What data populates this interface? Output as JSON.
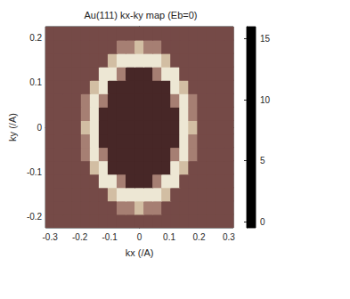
{
  "chart_data": {
    "type": "heatmap",
    "title": "Au(111) kx-ky map (Eb=0)",
    "xlabel": "kx (/A)",
    "ylabel": "ky (/A)",
    "xlim": [
      -0.315,
      0.315
    ],
    "ylim": [
      -0.225,
      0.225
    ],
    "xticks": [
      -0.3,
      -0.2,
      -0.1,
      0,
      0.1,
      0.2,
      0.3
    ],
    "yticks": [
      -0.2,
      -0.1,
      0,
      0.1,
      0.2
    ],
    "x": [
      -0.3,
      -0.27,
      -0.24,
      -0.21,
      -0.18,
      -0.15,
      -0.12,
      -0.09,
      -0.06,
      -0.03,
      0,
      0.03,
      0.06,
      0.09,
      0.12,
      0.15,
      0.18,
      0.21,
      0.24,
      0.27,
      0.3
    ],
    "y": [
      -0.21,
      -0.18,
      -0.15,
      -0.12,
      -0.09,
      -0.06,
      -0.03,
      0,
      0.03,
      0.06,
      0.09,
      0.12,
      0.15,
      0.18,
      0.21
    ],
    "cells": [
      [
        4,
        4,
        4,
        4,
        4,
        4,
        4,
        4,
        4,
        4,
        4,
        4,
        4,
        4,
        4,
        4,
        4,
        4,
        4,
        4,
        4
      ],
      [
        4,
        4,
        4,
        4,
        4,
        4,
        4,
        4,
        7,
        7,
        11,
        7,
        7,
        4,
        4,
        4,
        4,
        4,
        4,
        4,
        4
      ],
      [
        4,
        4,
        4,
        4,
        4,
        4,
        4,
        11,
        14,
        14,
        14,
        14,
        14,
        11,
        4,
        4,
        4,
        4,
        4,
        4,
        4
      ],
      [
        4,
        4,
        4,
        4,
        4,
        4,
        14,
        14,
        7,
        2,
        2,
        2,
        7,
        14,
        14,
        4,
        4,
        4,
        4,
        4,
        4
      ],
      [
        4,
        4,
        4,
        4,
        4,
        11,
        14,
        2,
        2,
        2,
        2,
        2,
        2,
        2,
        14,
        11,
        4,
        4,
        4,
        4,
        4
      ],
      [
        4,
        4,
        4,
        4,
        7,
        14,
        7,
        2,
        2,
        2,
        2,
        2,
        2,
        2,
        7,
        14,
        7,
        4,
        4,
        4,
        4
      ],
      [
        4,
        4,
        4,
        4,
        7,
        14,
        2,
        2,
        2,
        2,
        2,
        2,
        2,
        2,
        2,
        14,
        7,
        4,
        4,
        4,
        4
      ],
      [
        4,
        4,
        4,
        4,
        11,
        14,
        2,
        2,
        2,
        2,
        2,
        2,
        2,
        2,
        2,
        14,
        11,
        4,
        4,
        4,
        4
      ],
      [
        4,
        4,
        4,
        4,
        7,
        14,
        2,
        2,
        2,
        2,
        2,
        2,
        2,
        2,
        2,
        14,
        7,
        4,
        4,
        4,
        4
      ],
      [
        4,
        4,
        4,
        4,
        7,
        14,
        7,
        2,
        2,
        2,
        2,
        2,
        2,
        2,
        7,
        14,
        7,
        4,
        4,
        4,
        4
      ],
      [
        4,
        4,
        4,
        4,
        4,
        11,
        14,
        2,
        2,
        2,
        2,
        2,
        2,
        2,
        14,
        11,
        4,
        4,
        4,
        4,
        4
      ],
      [
        4,
        4,
        4,
        4,
        4,
        4,
        14,
        14,
        7,
        2,
        2,
        2,
        7,
        14,
        14,
        4,
        4,
        4,
        4,
        4,
        4
      ],
      [
        4,
        4,
        4,
        4,
        4,
        4,
        4,
        11,
        14,
        14,
        14,
        14,
        14,
        11,
        4,
        4,
        4,
        4,
        4,
        4,
        4
      ],
      [
        4,
        4,
        4,
        4,
        4,
        4,
        4,
        4,
        7,
        7,
        11,
        7,
        7,
        4,
        4,
        4,
        4,
        4,
        4,
        4,
        4
      ],
      [
        4,
        4,
        4,
        4,
        4,
        4,
        4,
        4,
        4,
        4,
        4,
        4,
        4,
        4,
        4,
        4,
        4,
        4,
        4,
        4,
        4
      ]
    ],
    "colorbar": {
      "range": [
        -0.5,
        16
      ],
      "ticks": [
        0,
        5,
        10,
        15
      ]
    }
  }
}
